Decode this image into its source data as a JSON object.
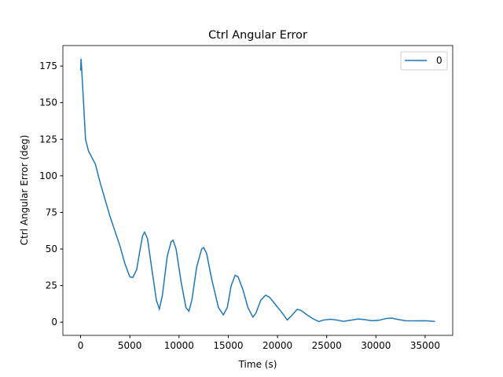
{
  "chart_data": {
    "type": "line",
    "title": "Ctrl Angular Error",
    "x_label": "Time (s)",
    "y_label": "Ctrl Angular Error (deg)",
    "x": [
      0,
      50,
      300,
      500,
      800,
      1500,
      2000,
      3000,
      4000,
      4500,
      5000,
      5300,
      5700,
      6000,
      6300,
      6500,
      6800,
      7200,
      7700,
      8000,
      8300,
      8800,
      9200,
      9400,
      9700,
      10200,
      10700,
      11000,
      11300,
      11800,
      12300,
      12500,
      12800,
      13300,
      14000,
      14500,
      14900,
      15300,
      15700,
      16000,
      16500,
      17000,
      17500,
      17800,
      18300,
      18800,
      19200,
      19800,
      20400,
      21000,
      21500,
      22000,
      22400,
      23000,
      23700,
      24200,
      24700,
      25400,
      26000,
      26700,
      27300,
      28200,
      28800,
      29600,
      30300,
      31000,
      31600,
      32300,
      33000,
      34000,
      35000,
      36000
    ],
    "series": [
      {
        "name": "0",
        "color": "#1f77b4",
        "values": [
          172,
          180,
          150,
          125,
          117,
          108,
          95,
          72,
          52,
          40,
          31,
          30.5,
          36,
          48,
          59,
          61.5,
          57,
          38,
          15,
          9,
          18,
          45,
          55,
          56,
          50,
          28,
          10,
          7.5,
          15,
          38,
          50,
          51,
          47,
          30,
          10,
          5,
          10,
          25,
          32,
          31,
          22,
          10,
          3.5,
          6,
          15,
          18.5,
          17,
          12,
          7,
          1.5,
          5,
          8.8,
          8,
          5,
          2,
          0.5,
          1.5,
          2,
          1.5,
          0.6,
          1.2,
          2.2,
          1.8,
          1,
          1.3,
          2.5,
          2.8,
          1.8,
          1,
          0.9,
          1,
          0.5
        ]
      }
    ],
    "xlim": [
      -1800,
      37800
    ],
    "xticks": [
      0,
      5000,
      10000,
      15000,
      20000,
      25000,
      30000,
      35000
    ],
    "ylim": [
      -9,
      189
    ],
    "yticks": [
      0,
      25,
      50,
      75,
      100,
      125,
      150,
      175
    ],
    "legend": "upper right",
    "grid": false
  }
}
